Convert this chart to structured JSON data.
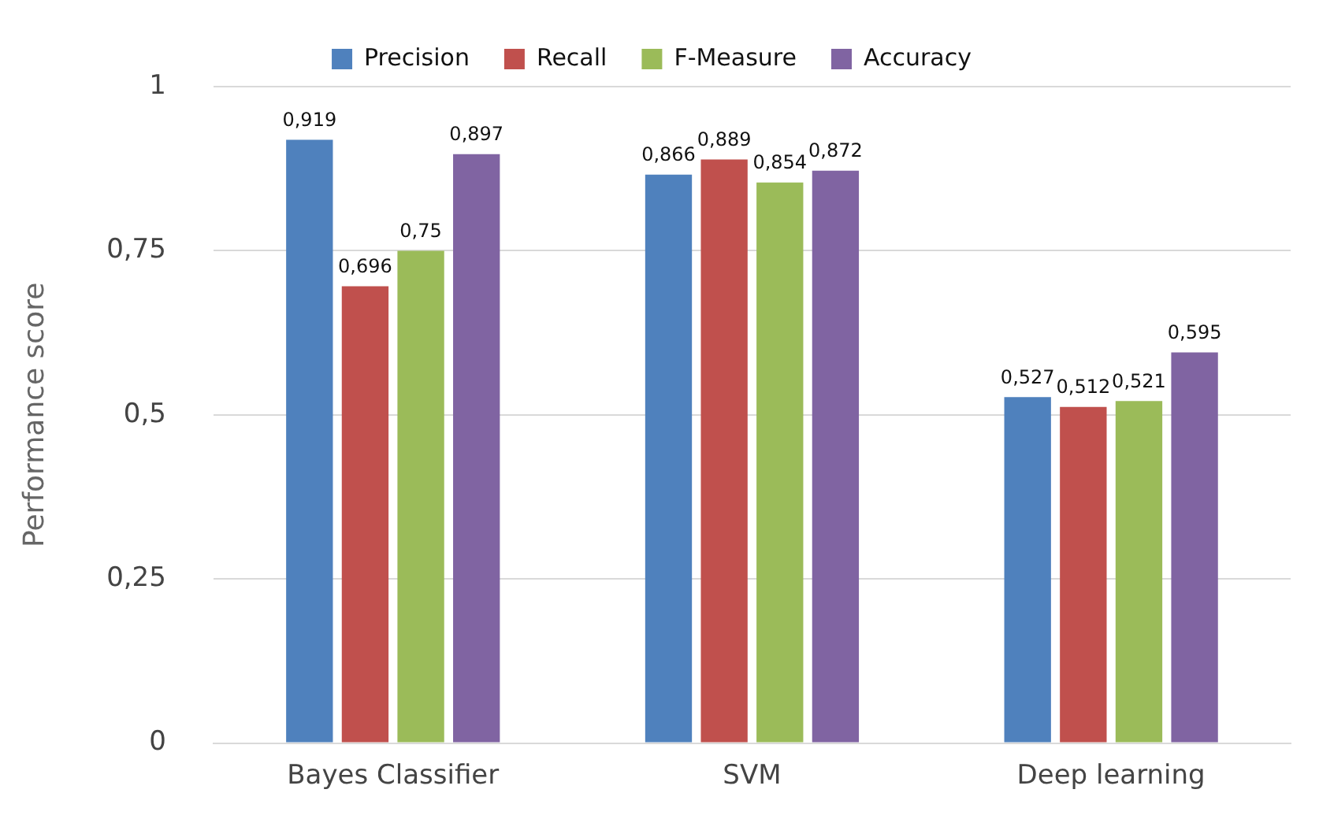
{
  "chart_data": {
    "type": "bar",
    "ylabel": "Performance score",
    "categories": [
      "Bayes Classifier",
      "SVM",
      "Deep learning"
    ],
    "series": [
      {
        "name": "Precision",
        "color": "#4f81bd",
        "values": [
          0.919,
          0.866,
          0.527
        ],
        "value_labels": [
          "0,919",
          "0,866",
          "0,527"
        ]
      },
      {
        "name": "Recall",
        "color": "#c0504d",
        "values": [
          0.696,
          0.889,
          0.512
        ],
        "value_labels": [
          "0,696",
          "0,889",
          "0,512"
        ]
      },
      {
        "name": "F-Measure",
        "color": "#9bbb59",
        "values": [
          0.75,
          0.854,
          0.521
        ],
        "value_labels": [
          "0,75",
          "0,854",
          "0,521"
        ]
      },
      {
        "name": "Accuracy",
        "color": "#8064a2",
        "values": [
          0.897,
          0.872,
          0.595
        ],
        "value_labels": [
          "0,897",
          "0,872",
          "0,595"
        ]
      }
    ],
    "ylim": [
      0,
      1
    ],
    "yticks": [
      0,
      {
        "value": 0.25,
        "label": "0,25"
      },
      {
        "value": 0.5,
        "label": "0,5"
      },
      {
        "value": 0.75,
        "label": "0,75"
      },
      1
    ],
    "grid": "y",
    "legend": "top"
  }
}
